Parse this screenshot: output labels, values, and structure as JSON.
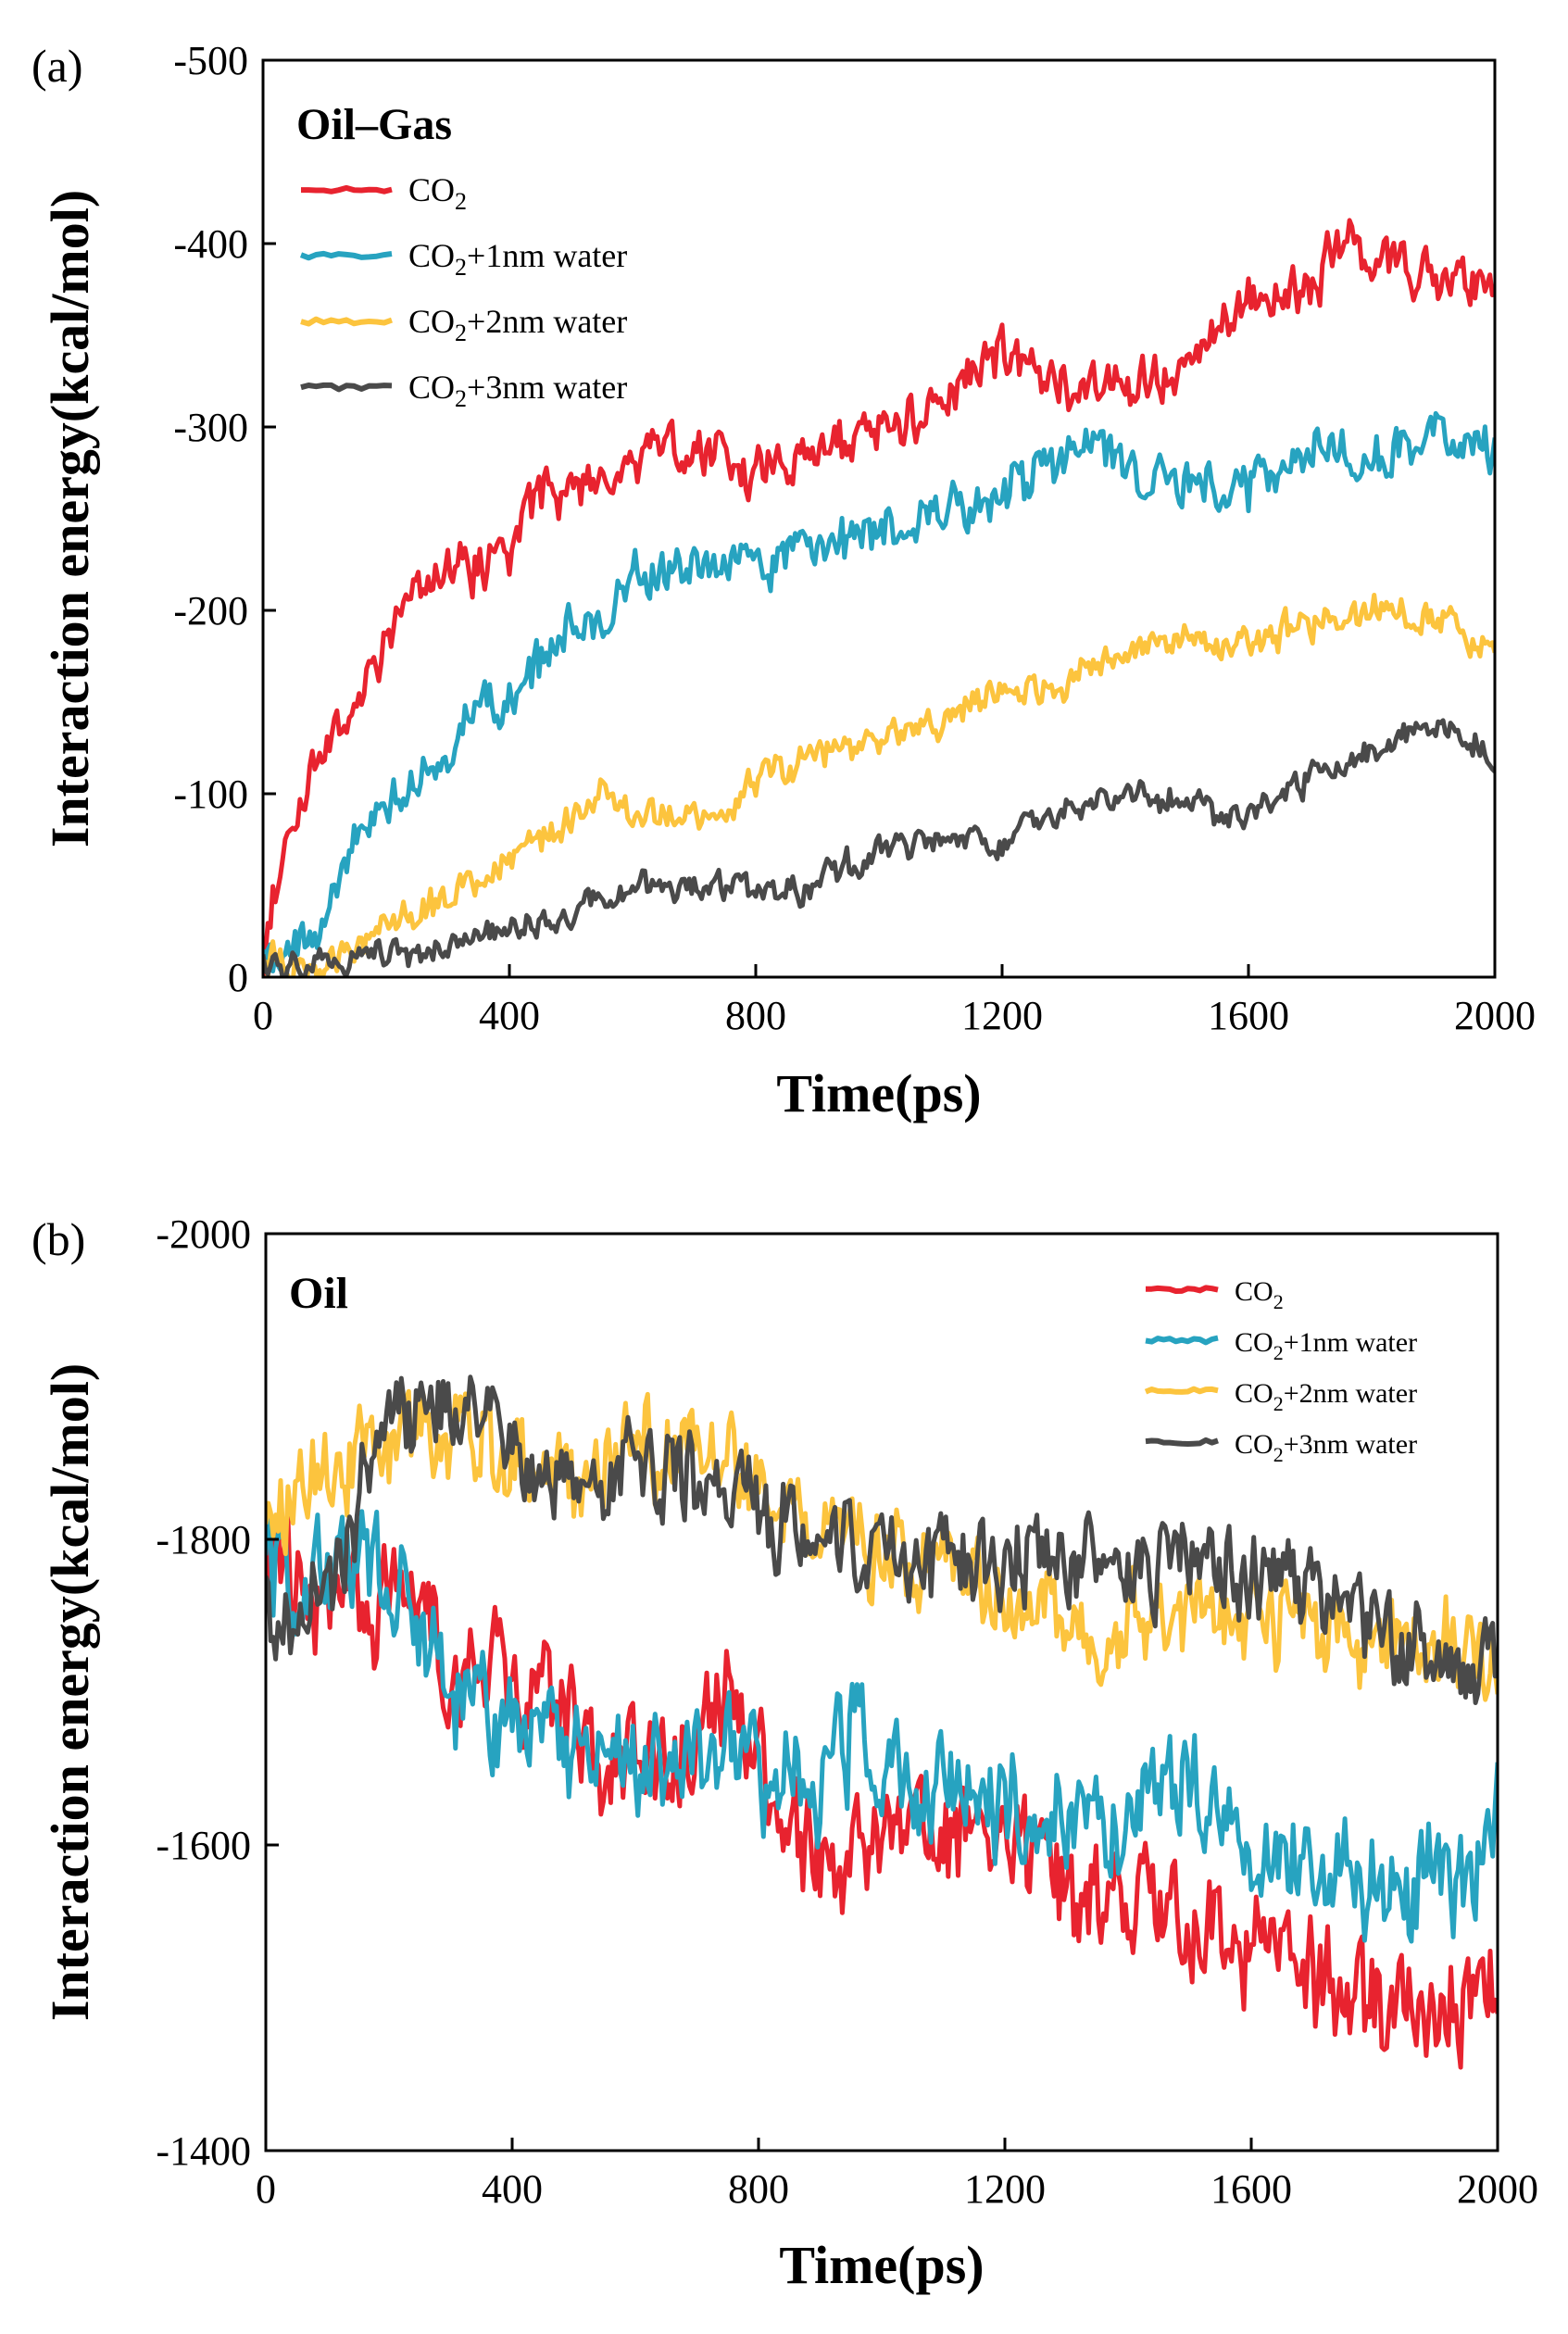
{
  "colors": {
    "co2": "#e8232f",
    "co2_1nm": "#27a3c0",
    "co2_2nm": "#fcc43e",
    "co2_3nm": "#4a4a4a"
  },
  "chart_data": [
    {
      "panel": "(a)",
      "type": "line",
      "title": "Oil–Gas",
      "xlabel": "Time(ps)",
      "ylabel": "Interaction energy(kcal/mol)",
      "xlim": [
        0,
        2000
      ],
      "ylim": [
        0,
        -500
      ],
      "xticks": [
        0,
        400,
        800,
        1200,
        1600,
        2000
      ],
      "xtick_labels": [
        "0",
        "400",
        "800",
        "1200",
        "1600",
        "2000"
      ],
      "yticks": [
        0,
        -100,
        -200,
        -300,
        -400,
        -500
      ],
      "ytick_labels": [
        "0",
        "-100",
        "-200",
        "-300",
        "-400",
        "-500"
      ],
      "legend_position": "top-left",
      "noise_amplitude": [
        14,
        14,
        10,
        8
      ],
      "series": [
        {
          "name": "CO2",
          "legend_main": "CO",
          "legend_sub": "2",
          "legend_suffix": "",
          "color_key": "co2",
          "x": [
            0,
            25,
            50,
            75,
            100,
            150,
            200,
            250,
            300,
            350,
            400,
            430,
            500,
            600,
            700,
            800,
            900,
            1000,
            1100,
            1200,
            1300,
            1400,
            1500,
            1550,
            1600,
            1700,
            1750,
            1800,
            1900,
            2000
          ],
          "y": [
            -15,
            -60,
            -90,
            -110,
            -120,
            -150,
            -180,
            -210,
            -225,
            -220,
            -230,
            -260,
            -265,
            -280,
            -290,
            -275,
            -290,
            -295,
            -310,
            -340,
            -320,
            -325,
            -330,
            -360,
            -370,
            -375,
            -400,
            -395,
            -380,
            -385
          ]
        },
        {
          "name": "CO2+1nm water",
          "legend_main": "CO",
          "legend_sub": "2",
          "legend_suffix": "+1nm water",
          "color_key": "co2_1nm",
          "x": [
            0,
            50,
            100,
            150,
            200,
            250,
            300,
            350,
            400,
            450,
            500,
            550,
            600,
            700,
            800,
            900,
            1000,
            1100,
            1200,
            1300,
            1350,
            1400,
            1500,
            1600,
            1700,
            1800,
            1900,
            2000
          ],
          "y": [
            -8,
            -10,
            -30,
            -70,
            -90,
            -115,
            -125,
            -145,
            -150,
            -170,
            -190,
            -195,
            -220,
            -220,
            -225,
            -235,
            -245,
            -250,
            -265,
            -280,
            -300,
            -270,
            -270,
            -265,
            -290,
            -285,
            -295,
            -285
          ]
        },
        {
          "name": "CO2+2nm water",
          "legend_main": "CO",
          "legend_sub": "2",
          "legend_suffix": "+2nm water",
          "color_key": "co2_2nm",
          "x": [
            0,
            100,
            150,
            200,
            250,
            300,
            350,
            400,
            450,
            500,
            550,
            600,
            700,
            800,
            900,
            1000,
            1100,
            1200,
            1300,
            1400,
            1500,
            1600,
            1700,
            1800,
            1900,
            2000
          ],
          "y": [
            -8,
            -8,
            -15,
            -25,
            -35,
            -45,
            -55,
            -65,
            -75,
            -85,
            -100,
            -90,
            -85,
            -105,
            -120,
            -130,
            -140,
            -155,
            -160,
            -180,
            -185,
            -180,
            -195,
            -200,
            -195,
            -180
          ]
        },
        {
          "name": "CO2+3nm water",
          "legend_main": "CO",
          "legend_sub": "2",
          "legend_suffix": "+3nm water",
          "color_key": "co2_3nm",
          "x": [
            0,
            100,
            200,
            300,
            400,
            450,
            500,
            550,
            600,
            700,
            800,
            900,
            950,
            1000,
            1100,
            1200,
            1300,
            1400,
            1500,
            1550,
            1600,
            1700,
            1800,
            1900,
            1950,
            2000
          ],
          "y": [
            -8,
            -8,
            -12,
            -15,
            -25,
            -30,
            -35,
            -45,
            -50,
            -50,
            -48,
            -50,
            -60,
            -70,
            -75,
            -75,
            -90,
            -100,
            -95,
            -85,
            -90,
            -110,
            -125,
            -135,
            -130,
            -120
          ]
        }
      ]
    },
    {
      "panel": "(b)",
      "type": "line",
      "title": "Oil",
      "xlabel": "Time(ps)",
      "ylabel": "Interaction energy(kcal/mol)",
      "xlim": [
        0,
        2000
      ],
      "ylim": [
        -1400,
        -2000
      ],
      "xticks": [
        0,
        400,
        800,
        1200,
        1600,
        2000
      ],
      "xtick_labels": [
        "0",
        "400",
        "800",
        "1200",
        "1600",
        "2000"
      ],
      "yticks": [
        -1400,
        -1600,
        -1800,
        -2000
      ],
      "ytick_labels": [
        "-1400",
        "-1600",
        "-1800",
        "-2000"
      ],
      "legend_position": "top-right",
      "noise_amplitude": [
        38,
        38,
        32,
        30
      ],
      "series": [
        {
          "name": "CO2",
          "legend_main": "CO",
          "legend_sub": "2",
          "legend_suffix": "",
          "color_key": "co2",
          "x": [
            0,
            50,
            100,
            200,
            300,
            400,
            500,
            600,
            700,
            750,
            800,
            900,
            1000,
            1100,
            1200,
            1300,
            1400,
            1500,
            1600,
            1700,
            1800,
            1900,
            2000
          ],
          "y": [
            -1800,
            -1760,
            -1750,
            -1760,
            -1720,
            -1710,
            -1680,
            -1650,
            -1660,
            -1700,
            -1660,
            -1580,
            -1600,
            -1610,
            -1600,
            -1570,
            -1560,
            -1550,
            -1540,
            -1510,
            -1500,
            -1500,
            -1490
          ]
        },
        {
          "name": "CO2+1nm water",
          "legend_main": "CO",
          "legend_sub": "2",
          "legend_suffix": "+1nm water",
          "color_key": "co2_1nm",
          "x": [
            0,
            50,
            100,
            200,
            300,
            400,
            500,
            600,
            700,
            800,
            900,
            950,
            1000,
            1100,
            1200,
            1300,
            1400,
            1500,
            1600,
            1700,
            1800,
            1900,
            1950,
            2000
          ],
          "y": [
            -1780,
            -1770,
            -1780,
            -1780,
            -1700,
            -1680,
            -1660,
            -1650,
            -1670,
            -1650,
            -1640,
            -1670,
            -1660,
            -1640,
            -1630,
            -1620,
            -1620,
            -1640,
            -1610,
            -1580,
            -1580,
            -1580,
            -1570,
            -1620
          ]
        },
        {
          "name": "CO2+2nm water",
          "legend_main": "CO",
          "legend_sub": "2",
          "legend_suffix": "+2nm water",
          "color_key": "co2_2nm",
          "x": [
            0,
            100,
            200,
            300,
            400,
            500,
            600,
            700,
            800,
            900,
            1000,
            1100,
            1200,
            1300,
            1400,
            1500,
            1600,
            1700,
            1800,
            1900,
            2000
          ],
          "y": [
            -1810,
            -1850,
            -1860,
            -1870,
            -1850,
            -1840,
            -1860,
            -1860,
            -1840,
            -1800,
            -1790,
            -1780,
            -1760,
            -1740,
            -1750,
            -1760,
            -1750,
            -1740,
            -1740,
            -1730,
            -1710
          ]
        },
        {
          "name": "CO2+3nm water",
          "legend_main": "CO",
          "legend_sub": "2",
          "legend_suffix": "+3nm water",
          "color_key": "co2_3nm",
          "x": [
            0,
            100,
            200,
            300,
            340,
            400,
            500,
            600,
            700,
            800,
            900,
            1000,
            1100,
            1200,
            1300,
            1400,
            1500,
            1600,
            1700,
            1800,
            1900,
            2000
          ],
          "y": [
            -1750,
            -1760,
            -1880,
            -1880,
            -1900,
            -1850,
            -1840,
            -1840,
            -1840,
            -1820,
            -1800,
            -1790,
            -1780,
            -1790,
            -1790,
            -1780,
            -1790,
            -1780,
            -1760,
            -1740,
            -1720,
            -1720
          ]
        }
      ]
    }
  ]
}
